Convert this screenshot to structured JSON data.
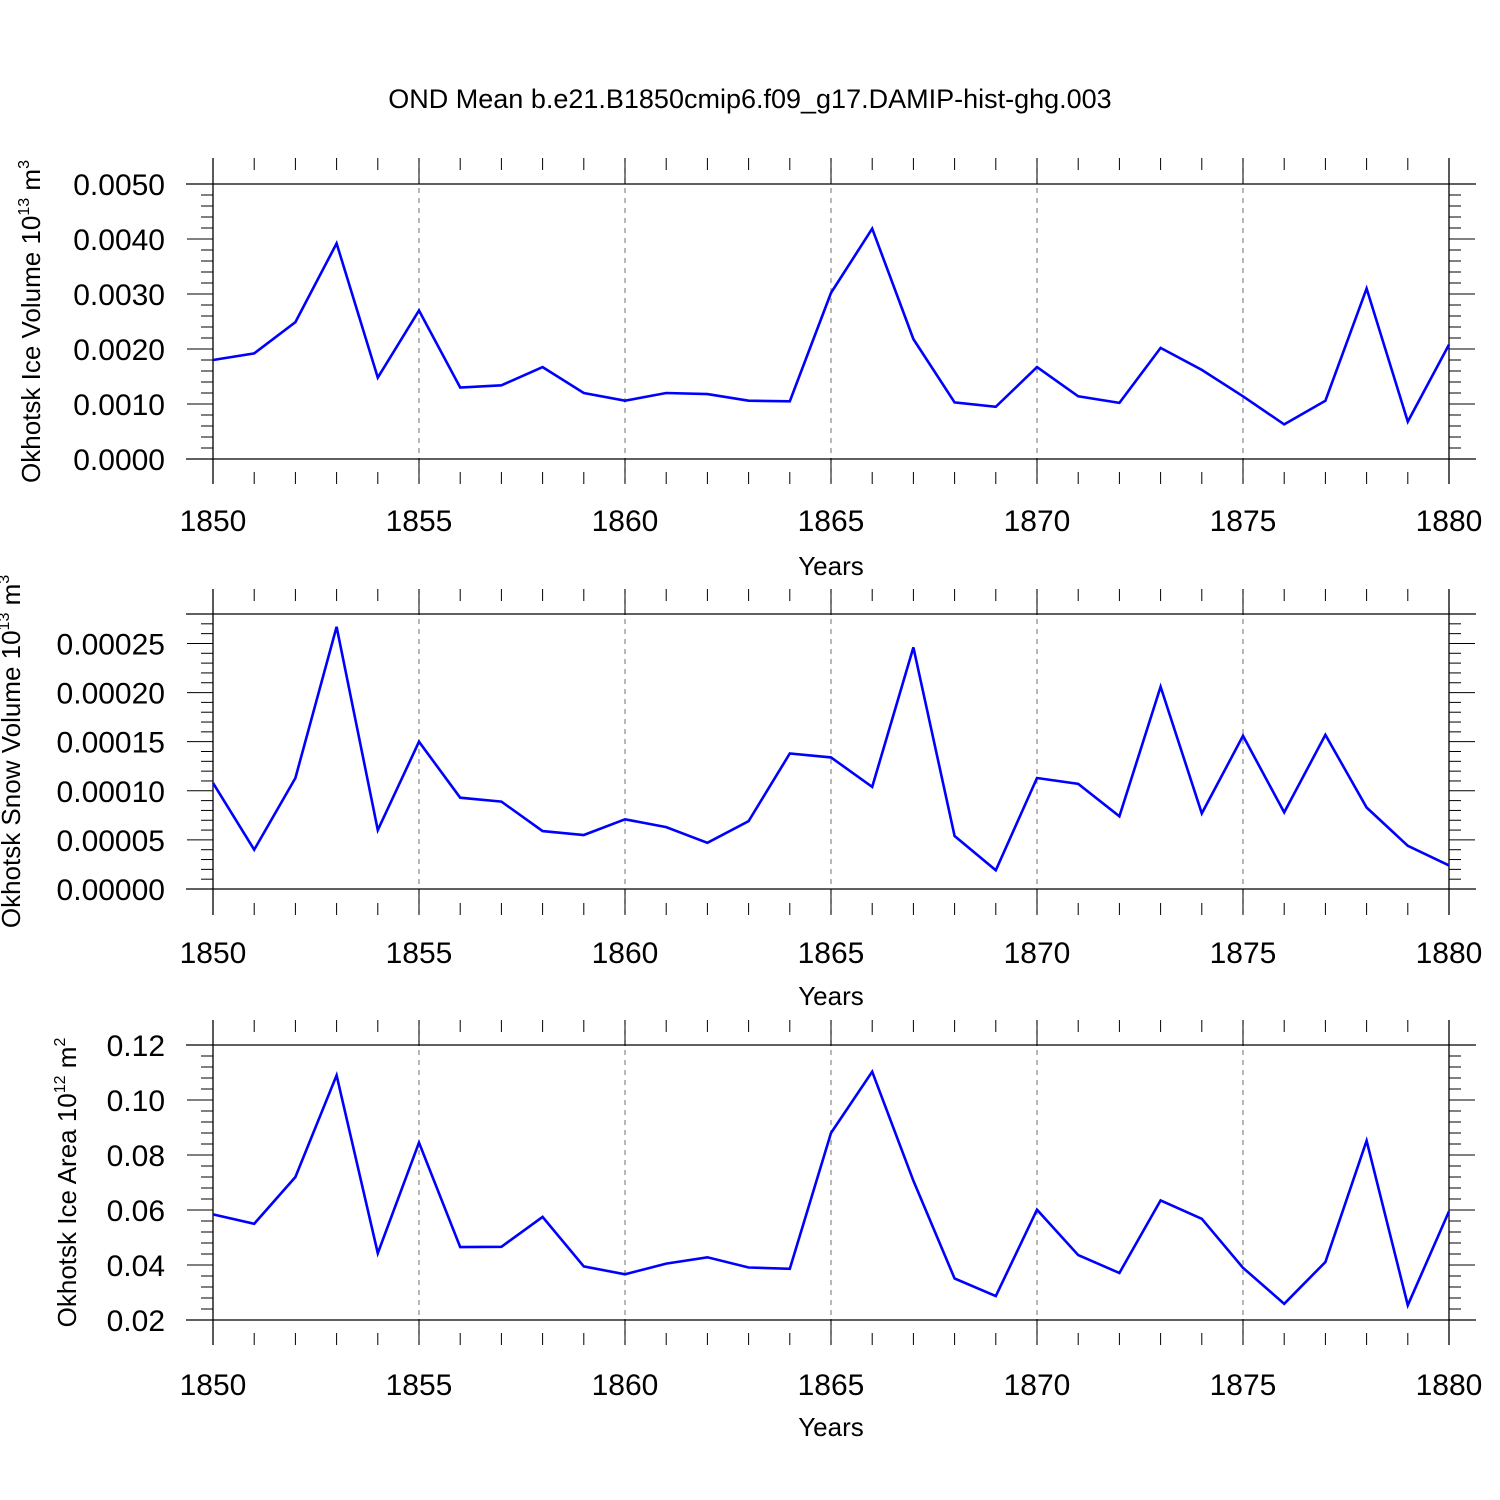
{
  "title": "OND Mean b.e21.B1850cmip6.f09_g17.DAMIP-hist-ghg.003",
  "colors": {
    "line": "#0000ff",
    "axis": "#000000",
    "grid": "#888888",
    "background": "#ffffff"
  },
  "chart_data": [
    {
      "type": "line",
      "xlabel": "Years",
      "ylabel": "Okhotsk Ice Volume 10",
      "ylabel_sup": "13",
      "ylabel_unit": " m",
      "ylabel_unit_sup": "3",
      "xlim": [
        1850,
        1880
      ],
      "ylim": [
        0.0,
        0.005
      ],
      "yticks": [
        "0.0000",
        "0.0010",
        "0.0020",
        "0.0030",
        "0.0040",
        "0.0050"
      ],
      "xticks": [
        "1850",
        "1855",
        "1860",
        "1865",
        "1870",
        "1875",
        "1880"
      ],
      "grid": "vertical dashed at major x ticks",
      "x": [
        1850,
        1851,
        1852,
        1853,
        1854,
        1855,
        1856,
        1857,
        1858,
        1859,
        1860,
        1861,
        1862,
        1863,
        1864,
        1865,
        1866,
        1867,
        1868,
        1869,
        1870,
        1871,
        1872,
        1873,
        1874,
        1875,
        1876,
        1877,
        1878,
        1879,
        1880
      ],
      "values": [
        0.0018,
        0.00192,
        0.00249,
        0.00392,
        0.00148,
        0.0027,
        0.0013,
        0.00134,
        0.00167,
        0.0012,
        0.00106,
        0.0012,
        0.00118,
        0.00106,
        0.00105,
        0.00302,
        0.00419,
        0.00218,
        0.00103,
        0.00095,
        0.00167,
        0.00114,
        0.00102,
        0.00202,
        0.00162,
        0.00114,
        0.00063,
        0.00106,
        0.0031,
        0.00068,
        0.00208
      ]
    },
    {
      "type": "line",
      "xlabel": "Years",
      "ylabel": "Okhotsk Snow Volume 10",
      "ylabel_sup": "13",
      "ylabel_unit": " m",
      "ylabel_unit_sup": "3",
      "xlim": [
        1850,
        1880
      ],
      "ylim": [
        0.0,
        0.00028
      ],
      "yticks": [
        "0.00000",
        "0.00005",
        "0.00010",
        "0.00015",
        "0.00020",
        "0.00025"
      ],
      "xticks": [
        "1850",
        "1855",
        "1860",
        "1865",
        "1870",
        "1875",
        "1880"
      ],
      "grid": "vertical dashed at major x ticks",
      "x": [
        1850,
        1851,
        1852,
        1853,
        1854,
        1855,
        1856,
        1857,
        1858,
        1859,
        1860,
        1861,
        1862,
        1863,
        1864,
        1865,
        1866,
        1867,
        1868,
        1869,
        1870,
        1871,
        1872,
        1873,
        1874,
        1875,
        1876,
        1877,
        1878,
        1879,
        1880
      ],
      "values": [
        0.000108,
        4e-05,
        0.000113,
        0.000267,
        6e-05,
        0.00015,
        9.3e-05,
        8.9e-05,
        5.9e-05,
        5.5e-05,
        7.1e-05,
        6.3e-05,
        4.7e-05,
        6.9e-05,
        0.000138,
        0.000134,
        0.000104,
        0.000246,
        5.4e-05,
        1.9e-05,
        0.000113,
        0.000107,
        7.4e-05,
        0.000206,
        7.7e-05,
        0.000156,
        7.8e-05,
        0.000157,
        8.3e-05,
        4.4e-05,
        2.4e-05
      ]
    },
    {
      "type": "line",
      "xlabel": "Years",
      "ylabel": "Okhotsk Ice Area 10",
      "ylabel_sup": "12",
      "ylabel_unit": " m",
      "ylabel_unit_sup": "2",
      "xlim": [
        1850,
        1880
      ],
      "ylim": [
        0.02,
        0.12
      ],
      "yticks": [
        "0.02",
        "0.04",
        "0.06",
        "0.08",
        "0.10",
        "0.12"
      ],
      "xticks": [
        "1850",
        "1855",
        "1860",
        "1865",
        "1870",
        "1875",
        "1880"
      ],
      "grid": "vertical dashed at major x ticks",
      "x": [
        1850,
        1851,
        1852,
        1853,
        1854,
        1855,
        1856,
        1857,
        1858,
        1859,
        1860,
        1861,
        1862,
        1863,
        1864,
        1865,
        1866,
        1867,
        1868,
        1869,
        1870,
        1871,
        1872,
        1873,
        1874,
        1875,
        1876,
        1877,
        1878,
        1879,
        1880
      ],
      "values": [
        0.0584,
        0.055,
        0.072,
        0.109,
        0.0443,
        0.0845,
        0.0465,
        0.0466,
        0.0575,
        0.0395,
        0.0366,
        0.0405,
        0.0428,
        0.0391,
        0.0386,
        0.088,
        0.1103,
        0.0706,
        0.0351,
        0.0287,
        0.0601,
        0.0436,
        0.0371,
        0.0635,
        0.0568,
        0.039,
        0.0259,
        0.0411,
        0.0852,
        0.0254,
        0.0595
      ]
    }
  ]
}
